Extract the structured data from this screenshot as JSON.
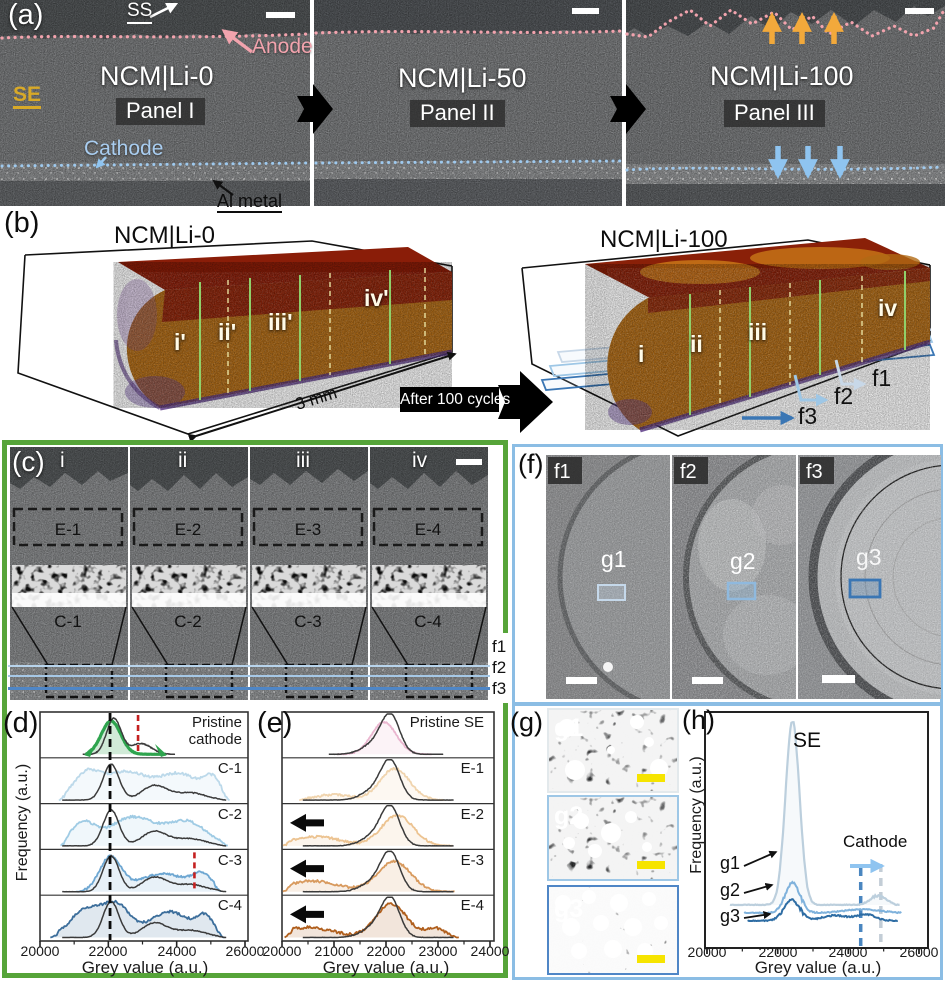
{
  "panel_labels": {
    "a": "(a)",
    "b": "(b)",
    "c": "(c)",
    "d": "(d)",
    "e": "(e)",
    "f": "(f)",
    "g": "(g)",
    "h": "(h)"
  },
  "panel_a": {
    "ss_label": "SS",
    "anode_label": "Anode",
    "se_label": "SE",
    "cathode_label": "Cathode",
    "al_label": "Al metal",
    "panels": [
      {
        "title": "NCM|Li-0",
        "subtitle": "Panel I"
      },
      {
        "title": "NCM|Li-50",
        "subtitle": "Panel II"
      },
      {
        "title": "NCM|Li-100",
        "subtitle": "Panel III"
      }
    ]
  },
  "panel_b": {
    "left_title": "NCM|Li-0",
    "right_title": "NCM|Li-100",
    "left_sections": [
      "i'",
      "ii'",
      "iii'",
      "iv'"
    ],
    "right_sections": [
      "i",
      "ii",
      "iii",
      "iv"
    ],
    "scale_label": "3 mm",
    "transition_label": "After 100 cycles",
    "slice_labels": [
      "f1",
      "f2",
      "f3"
    ]
  },
  "panel_c": {
    "sections": [
      "i",
      "ii",
      "iii",
      "iv"
    ],
    "electrolyte_regions": [
      "E-1",
      "E-2",
      "E-3",
      "E-4"
    ],
    "cathode_regions": [
      "C-1",
      "C-2",
      "C-3",
      "C-4"
    ],
    "slice_labels": [
      "f1",
      "f2",
      "f3"
    ]
  },
  "panel_f": {
    "images": [
      {
        "badge": "f1",
        "region": "g1"
      },
      {
        "badge": "f2",
        "region": "g2"
      },
      {
        "badge": "f3",
        "region": "g3"
      }
    ]
  },
  "panel_g": {
    "images": [
      "g1",
      "g2",
      "g3"
    ]
  },
  "colors": {
    "green_frame": "#56a439",
    "blue_frame": "#8bbde4",
    "anode_pink": "#f2a3ad",
    "se_yellow": "#d8a928",
    "cathode_blue": "#a9cdf0",
    "orange_arrow": "#f2a93b",
    "blue_arrow": "#8fc4f0",
    "scale_bar_yellow": "#f6e400",
    "volume_orange": "#b06a14",
    "volume_red": "#8a1d08",
    "volume_purple": "#5a3590"
  },
  "chart_data": [
    {
      "id": "d",
      "type": "area",
      "xlabel": "Grey value (a.u.)",
      "ylabel": "Frequency (a.u.)",
      "xlim": [
        20000,
        26100
      ],
      "xticks": [
        20000,
        22000,
        24000,
        26000
      ],
      "guides": {
        "black_dash": 22050,
        "red_dash": [
          {
            "row": 0,
            "value": 22870
          },
          {
            "row": 3,
            "value": 24520
          }
        ]
      },
      "rows": [
        {
          "label": "Pristine cathode",
          "color": "#2ea44e",
          "sw": 3.2,
          "fo": 0.22,
          "noise": 0.02,
          "colored": {
            "peaks": [
              [
                22080,
                400,
                0.93
              ]
            ],
            "range": [
              21330,
              23680
            ]
          },
          "dark": {
            "peaks": [
              [
                22160,
                300,
                1.0
              ],
              [
                22950,
                430,
                0.3
              ]
            ],
            "range": [
              21250,
              23950
            ]
          }
        },
        {
          "label": "C-1",
          "color": "#bcd9ea",
          "noise": 0.07,
          "colored": {
            "peaks": [
              [
                21350,
                550,
                0.68
              ],
              [
                22500,
                900,
                0.78
              ],
              [
                24100,
                850,
                0.72
              ],
              [
                25050,
                350,
                0.5
              ]
            ],
            "range": [
              20550,
              25550
            ]
          },
          "dark": {
            "peaks": [
              [
                22080,
                330,
                1.0
              ],
              [
                23350,
                520,
                0.4
              ],
              [
                24400,
                650,
                0.2
              ]
            ],
            "range": [
              20650,
              25450
            ]
          }
        },
        {
          "label": "C-2",
          "color": "#9fcbe4",
          "noise": 0.07,
          "colored": {
            "peaks": [
              [
                21250,
                500,
                0.62
              ],
              [
                22700,
                950,
                0.8
              ],
              [
                24300,
                800,
                0.66
              ]
            ],
            "range": [
              20600,
              25500
            ]
          },
          "dark": {
            "peaks": [
              [
                22080,
                330,
                1.0
              ],
              [
                23350,
                520,
                0.4
              ],
              [
                24400,
                650,
                0.2
              ]
            ],
            "range": [
              20650,
              25450
            ]
          }
        },
        {
          "label": "C-3",
          "color": "#6ea7d2",
          "noise": 0.06,
          "colored": {
            "peaks": [
              [
                22060,
                450,
                0.95
              ],
              [
                23600,
                1000,
                0.5
              ],
              [
                24750,
                400,
                0.42
              ]
            ],
            "range": [
              21050,
              25300
            ]
          },
          "dark": {
            "peaks": [
              [
                22080,
                330,
                1.0
              ],
              [
                23350,
                520,
                0.4
              ],
              [
                24400,
                650,
                0.2
              ]
            ],
            "range": [
              20650,
              25450
            ]
          }
        },
        {
          "label": "C-4",
          "color": "#3c6e9b",
          "noise": 0.07,
          "colored": {
            "peaks": [
              [
                21350,
                650,
                0.78
              ],
              [
                22250,
                550,
                0.85
              ],
              [
                23800,
                850,
                0.72
              ],
              [
                24850,
                350,
                0.5
              ]
            ],
            "range": [
              20300,
              25400
            ]
          },
          "dark": {
            "peaks": [
              [
                22080,
                330,
                1.0
              ],
              [
                23350,
                520,
                0.4
              ],
              [
                24400,
                650,
                0.2
              ]
            ],
            "range": [
              20650,
              25450
            ]
          }
        }
      ]
    },
    {
      "id": "e",
      "type": "area",
      "xlabel": "Grey value (a.u.)",
      "ylabel": "",
      "xlim": [
        20000,
        24150
      ],
      "xticks": [
        20000,
        21000,
        22000,
        23000,
        24000
      ],
      "rows": [
        {
          "label": "Pristine SE",
          "color": "#eab6cf",
          "noise": 0.04,
          "colored": {
            "peaks": [
              [
                21960,
                340,
                0.9
              ]
            ],
            "range": [
              21060,
              22880
            ]
          },
          "dark": {
            "peaks": [
              [
                22090,
                250,
                1.0
              ],
              [
                21800,
                350,
                0.3
              ]
            ],
            "range": [
              20900,
              23100
            ]
          }
        },
        {
          "label": "E-1",
          "color": "#f0d4ae",
          "noise": 0.06,
          "colored": {
            "peaks": [
              [
                22170,
                400,
                0.88
              ],
              [
                21000,
                500,
                0.15
              ]
            ],
            "range": [
              20330,
              23120
            ]
          },
          "dark": {
            "peaks": [
              [
                22090,
                250,
                1.0
              ],
              [
                21800,
                350,
                0.3
              ]
            ],
            "range": [
              20400,
              23300
            ]
          }
        },
        {
          "label": "E-2",
          "color": "#ecc391",
          "noise": 0.07,
          "arrow": true,
          "colored": {
            "peaks": [
              [
                22220,
                430,
                0.86
              ],
              [
                20650,
                650,
                0.26
              ]
            ],
            "range": [
              20020,
              23280
            ]
          },
          "dark": {
            "peaks": [
              [
                22090,
                250,
                1.0
              ],
              [
                21800,
                350,
                0.3
              ]
            ],
            "range": [
              20400,
              23300
            ]
          }
        },
        {
          "label": "E-3",
          "color": "#d89a5e",
          "noise": 0.07,
          "arrow": true,
          "colored": {
            "peaks": [
              [
                22160,
                450,
                0.84
              ],
              [
                20580,
                700,
                0.3
              ]
            ],
            "range": [
              20020,
              23320
            ]
          },
          "dark": {
            "peaks": [
              [
                22090,
                250,
                1.0
              ],
              [
                21800,
                350,
                0.3
              ]
            ],
            "range": [
              20400,
              23300
            ]
          }
        },
        {
          "label": "E-4",
          "color": "#b05f1d",
          "noise": 0.08,
          "arrow": true,
          "colored": {
            "peaks": [
              [
                22100,
                420,
                0.94
              ],
              [
                20500,
                700,
                0.28
              ],
              [
                22950,
                280,
                0.25
              ]
            ],
            "range": [
              20050,
              23400
            ]
          },
          "dark": {
            "peaks": [
              [
                22090,
                250,
                1.0
              ],
              [
                21800,
                350,
                0.3
              ]
            ],
            "range": [
              20400,
              23300
            ]
          }
        }
      ]
    },
    {
      "id": "h",
      "type": "line",
      "xlabel": "Grey value (a.u.)",
      "ylabel": "Frequency (a.u.)",
      "xlim": [
        20000,
        26100
      ],
      "xticks": [
        20000,
        22000,
        24000,
        26000
      ],
      "annotations": {
        "se": "SE",
        "cathode": "Cathode",
        "guide_blue": 24350,
        "guide_grey": 24920
      },
      "series": [
        {
          "name": "g1",
          "color": "#bccfdd",
          "noise": 0.015,
          "fo": 0.13,
          "peaks": [
            [
              22420,
              280,
              1.0
            ],
            [
              24850,
              320,
              0.05
            ]
          ],
          "range": [
            20650,
            25450
          ]
        },
        {
          "name": "g2",
          "color": "#7fb2dc",
          "noise": 0.02,
          "peaks": [
            [
              22420,
              300,
              0.16
            ],
            [
              24400,
              700,
              0.02
            ]
          ],
          "range": [
            21050,
            25500
          ]
        },
        {
          "name": "g3",
          "color": "#2e6da4",
          "noise": 0.02,
          "peaks": [
            [
              22400,
              330,
              0.11
            ],
            [
              23600,
              500,
              0.03
            ],
            [
              24500,
              400,
              0.035
            ]
          ],
          "range": [
            21150,
            25400
          ]
        }
      ]
    }
  ]
}
